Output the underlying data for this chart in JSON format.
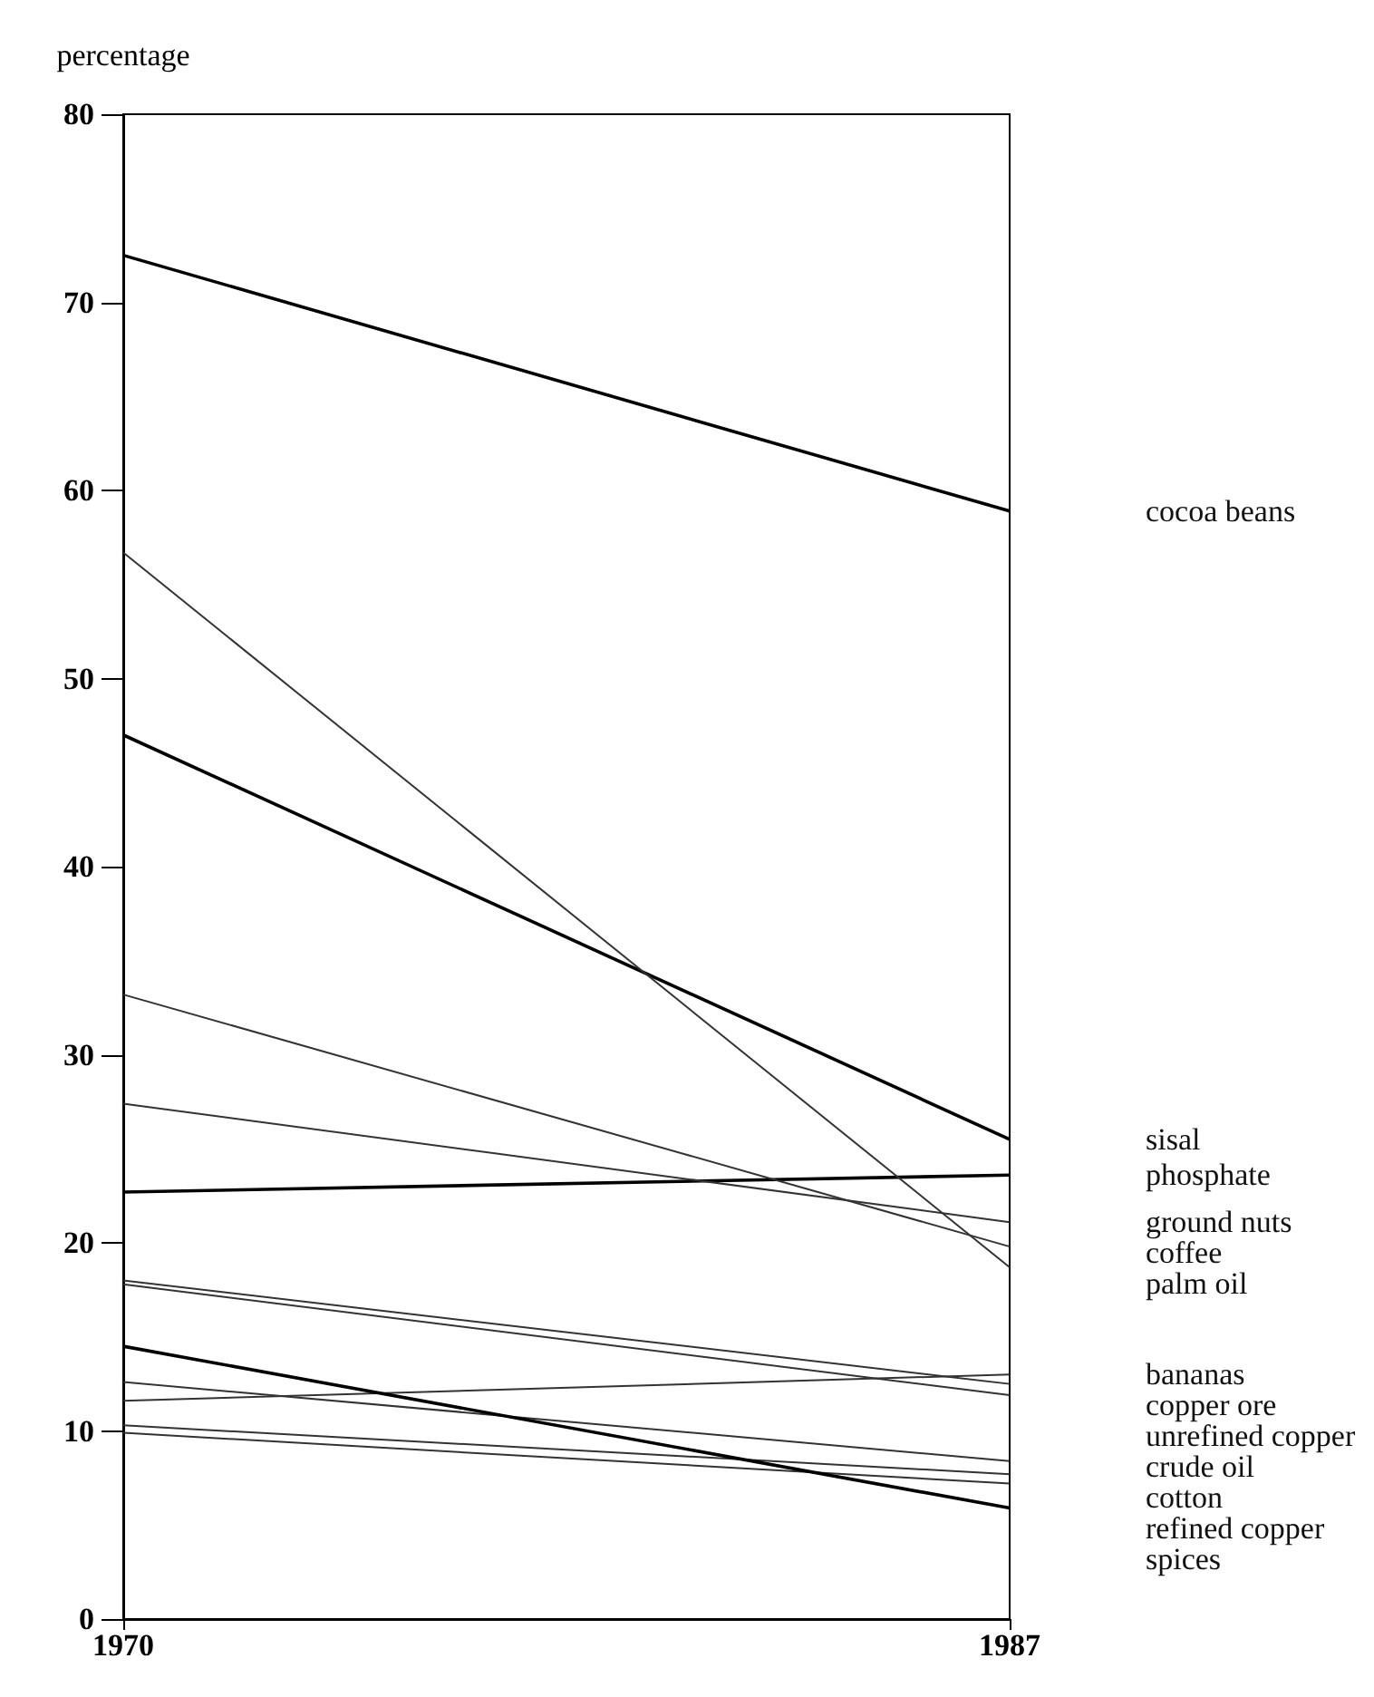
{
  "chart_data": {
    "type": "line",
    "ylabel": "percentage",
    "x": [
      1970,
      1987
    ],
    "xlim": [
      1970,
      1987
    ],
    "xticks": [
      1970,
      1987
    ],
    "ylim": [
      0,
      80
    ],
    "yticks": [
      0,
      10,
      20,
      30,
      40,
      50,
      60,
      70,
      80
    ],
    "grid": false,
    "legend": false,
    "marker": "none",
    "line_style": "solid",
    "series": [
      {
        "name": "cocoa beans",
        "color": "#000000",
        "values": [
          72.5,
          58.9
        ]
      },
      {
        "name": "sisal",
        "color": "#000000",
        "values": [
          47,
          25.5
        ]
      },
      {
        "name": "phosphate",
        "color": "#000000",
        "values": [
          22.7,
          23.6
        ]
      },
      {
        "name": "ground nuts",
        "color": "#333333",
        "values": [
          27.4,
          21.1
        ]
      },
      {
        "name": "coffee",
        "color": "#333333",
        "values": [
          33.2,
          19.8
        ]
      },
      {
        "name": "palm oil",
        "color": "#333333",
        "values": [
          56.7,
          18.7
        ]
      },
      {
        "name": "bananas",
        "color": "#333333",
        "values": [
          11.6,
          13.0
        ]
      },
      {
        "name": "copper ore",
        "color": "#333333",
        "values": [
          18.0,
          12.5
        ]
      },
      {
        "name": "unrefined copper",
        "color": "#333333",
        "values": [
          17.8,
          11.9
        ]
      },
      {
        "name": "crude oil",
        "color": "#333333",
        "values": [
          12.6,
          8.4
        ]
      },
      {
        "name": "cotton",
        "color": "#333333",
        "values": [
          10.3,
          7.7
        ]
      },
      {
        "name": "refined copper",
        "color": "#333333",
        "values": [
          9.9,
          7.2
        ]
      },
      {
        "name": "spices",
        "color": "#000000",
        "values": [
          14.5,
          5.9
        ]
      }
    ]
  }
}
